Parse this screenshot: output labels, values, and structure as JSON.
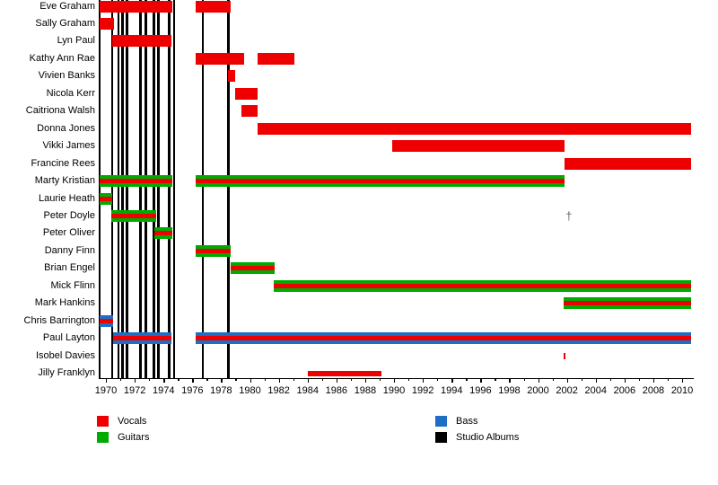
{
  "chart_data": {
    "type": "bar",
    "subtype": "band-membership-timeline-gantt",
    "title": "",
    "colors": {
      "vocals": "#ee0000",
      "guitars": "#00ab00",
      "bass": "#1d6fc5",
      "albums": "#000000",
      "dagger": "#666666",
      "axis": "#000000"
    },
    "x_axis": {
      "min": 1969.5,
      "max": 2010.65,
      "unit": "year",
      "major_ticks": [
        1970,
        1972,
        1974,
        1976,
        1978,
        1980,
        1982,
        1984,
        1986,
        1988,
        1990,
        1992,
        1994,
        1996,
        1998,
        2000,
        2002,
        2004,
        2006,
        2008,
        2010
      ],
      "minor_ticks": [
        1971,
        1973,
        1975,
        1977,
        1979,
        1981,
        1983,
        1985,
        1987,
        1989,
        1991,
        1993,
        1995,
        1997,
        1999,
        2001,
        2003,
        2005,
        2007,
        2009
      ]
    },
    "rows": [
      {
        "name": "Eve Graham",
        "roles": [
          "vocals"
        ],
        "style": "full",
        "periods": [
          [
            1969.55,
            1974.6
          ],
          [
            1976.25,
            1978.65
          ]
        ]
      },
      {
        "name": "Sally Graham",
        "roles": [
          "vocals"
        ],
        "style": "full",
        "periods": [
          [
            1969.55,
            1970.55
          ]
        ]
      },
      {
        "name": "Lyn Paul",
        "roles": [
          "vocals"
        ],
        "style": "full",
        "periods": [
          [
            1970.45,
            1974.55
          ]
        ]
      },
      {
        "name": "Kathy Ann Rae",
        "roles": [
          "vocals"
        ],
        "style": "full",
        "periods": [
          [
            1976.2,
            1979.6
          ],
          [
            1980.55,
            1983.1
          ]
        ]
      },
      {
        "name": "Vivien Banks",
        "roles": [
          "vocals"
        ],
        "style": "full",
        "periods": [
          [
            1978.5,
            1978.95
          ]
        ]
      },
      {
        "name": "Nicola Kerr",
        "roles": [
          "vocals"
        ],
        "style": "full",
        "periods": [
          [
            1978.95,
            1980.55
          ]
        ]
      },
      {
        "name": "Caitriona Walsh",
        "roles": [
          "vocals"
        ],
        "style": "full",
        "periods": [
          [
            1979.4,
            1980.55
          ]
        ]
      },
      {
        "name": "Donna Jones",
        "roles": [
          "vocals"
        ],
        "style": "full",
        "periods": [
          [
            1980.55,
            2010.65
          ]
        ]
      },
      {
        "name": "Vikki James",
        "roles": [
          "vocals"
        ],
        "style": "full",
        "periods": [
          [
            1989.9,
            2001.85
          ]
        ]
      },
      {
        "name": "Francine Rees",
        "roles": [
          "vocals"
        ],
        "style": "full",
        "periods": [
          [
            2001.85,
            2010.65
          ]
        ]
      },
      {
        "name": "Marty Kristian",
        "roles": [
          "vocals",
          "guitars"
        ],
        "style": "full",
        "periods": [
          [
            1969.55,
            1974.6
          ],
          [
            1976.25,
            2001.85
          ]
        ]
      },
      {
        "name": "Laurie Heath",
        "roles": [
          "vocals",
          "guitars"
        ],
        "style": "full",
        "periods": [
          [
            1969.55,
            1970.45
          ]
        ]
      },
      {
        "name": "Peter Doyle",
        "roles": [
          "vocals",
          "guitars"
        ],
        "style": "full",
        "periods": [
          [
            1970.4,
            1973.5
          ]
        ]
      },
      {
        "name": "Peter Oliver",
        "roles": [
          "vocals",
          "guitars"
        ],
        "style": "full",
        "periods": [
          [
            1973.35,
            1974.6
          ]
        ]
      },
      {
        "name": "Danny Finn",
        "roles": [
          "vocals",
          "guitars"
        ],
        "style": "full",
        "periods": [
          [
            1976.25,
            1978.65
          ]
        ]
      },
      {
        "name": "Brian Engel",
        "roles": [
          "vocals",
          "guitars"
        ],
        "style": "full",
        "periods": [
          [
            1978.65,
            1981.7
          ]
        ]
      },
      {
        "name": "Mick Flinn",
        "roles": [
          "vocals",
          "guitars"
        ],
        "style": "full",
        "periods": [
          [
            1981.65,
            2010.65
          ]
        ]
      },
      {
        "name": "Mark Hankins",
        "roles": [
          "vocals",
          "guitars"
        ],
        "style": "full",
        "periods": [
          [
            2001.8,
            2010.65
          ]
        ]
      },
      {
        "name": "Chris Barrington",
        "roles": [
          "vocals",
          "bass"
        ],
        "style": "full",
        "periods": [
          [
            1969.55,
            1970.5
          ]
        ]
      },
      {
        "name": "Paul Layton",
        "roles": [
          "vocals",
          "bass"
        ],
        "style": "full",
        "periods": [
          [
            1970.5,
            1974.55
          ],
          [
            1976.25,
            2010.65
          ]
        ]
      },
      {
        "name": "Isobel Davies",
        "roles": [
          "vocals"
        ],
        "style": "tick",
        "periods": [
          [
            2001.78,
            2001.92
          ]
        ]
      },
      {
        "name": "Jilly Franklyn",
        "roles": [
          "vocals"
        ],
        "style": "thin",
        "periods": [
          [
            1984.0,
            1989.15
          ]
        ]
      }
    ],
    "album_years": [
      1969.56,
      1970.43,
      1970.88,
      1971.15,
      1971.46,
      1972.4,
      1972.77,
      1973.33,
      1973.64,
      1974.39,
      1974.72,
      1976.73,
      1978.5
    ],
    "annotations": [
      {
        "symbol": "†",
        "row_index": 12,
        "year": 2002.1
      }
    ],
    "legend": [
      {
        "label": "Vocals",
        "color_key": "vocals"
      },
      {
        "label": "Guitars",
        "color_key": "guitars"
      },
      {
        "label": "Bass",
        "color_key": "bass"
      },
      {
        "label": "Studio Albums",
        "color_key": "albums"
      }
    ]
  }
}
